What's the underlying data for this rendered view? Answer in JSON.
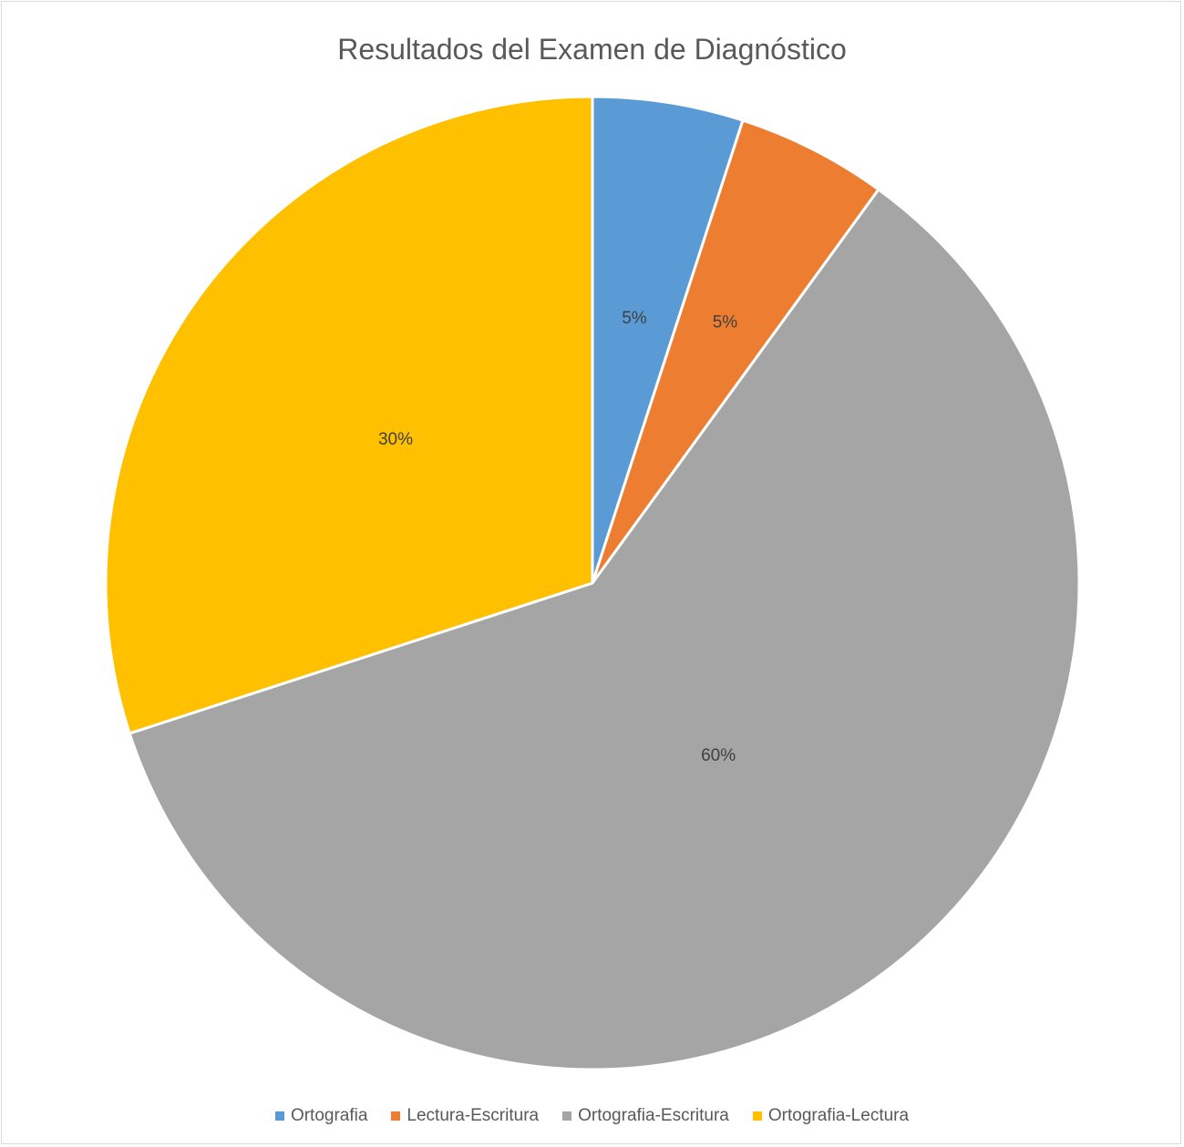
{
  "chart_data": {
    "type": "pie",
    "title": "Resultados del Examen de Diagnóstico",
    "categories": [
      "Ortografia",
      "Lectura-Escritura",
      "Ortografia-Escritura",
      "Ortografia-Lectura"
    ],
    "values": [
      5,
      5,
      60,
      30
    ],
    "labels": [
      "5%",
      "5%",
      "60%",
      "30%"
    ],
    "colors": [
      "#5b9bd5",
      "#ed7d31",
      "#a5a5a5",
      "#ffc000"
    ],
    "legend_position": "bottom"
  }
}
